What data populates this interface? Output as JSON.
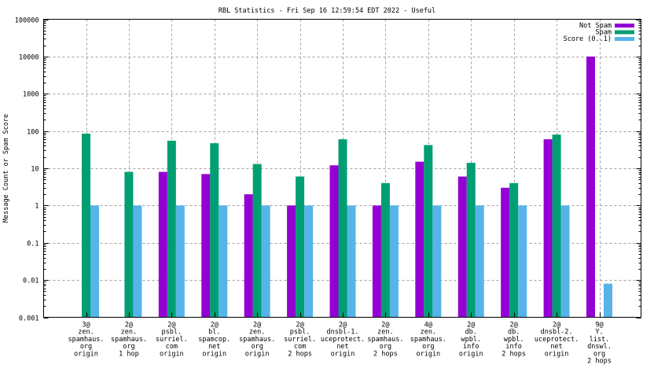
{
  "chart_data": {
    "type": "bar",
    "title": "RBL Statistics - Fri Sep 16 12:59:54 EDT 2022 - Useful",
    "xlabel": "",
    "ylabel": "Message Count or Spam Score",
    "yscale": "log",
    "ylim": [
      0.001,
      100000
    ],
    "yticks": [
      "100000",
      "10000",
      "1000",
      "100",
      "10",
      "1",
      "0.1",
      "0.01",
      "0.001"
    ],
    "ytick_values": [
      100000,
      10000,
      1000,
      100,
      10,
      1,
      0.1,
      0.01,
      0.001
    ],
    "grid": true,
    "legend_position": "top-right",
    "categories": [
      [
        "3@",
        "zen.",
        "spamhaus.",
        "org",
        "origin"
      ],
      [
        "2@",
        "zen.",
        "spamhaus.",
        "org",
        "1 hop"
      ],
      [
        "2@",
        "psbl.",
        "surriel.",
        "com",
        "origin"
      ],
      [
        "2@",
        "bl.",
        "spamcop.",
        "net",
        "origin"
      ],
      [
        "2@",
        "zen.",
        "spamhaus.",
        "org",
        "origin"
      ],
      [
        "2@",
        "psbl.",
        "surriel.",
        "com",
        "2 hops"
      ],
      [
        "2@",
        "dnsbl-1.",
        "uceprotect.",
        "net",
        "origin"
      ],
      [
        "2@",
        "zen.",
        "spamhaus.",
        "org",
        "2 hops"
      ],
      [
        "4@",
        "zen.",
        "spamhaus.",
        "org",
        "origin"
      ],
      [
        "2@",
        "db.",
        "wpbl.",
        "info",
        "origin"
      ],
      [
        "2@",
        "db.",
        "wpbl.",
        "info",
        "2 hops"
      ],
      [
        "2@",
        "dnsbl-2.",
        "uceprotect.",
        "net",
        "origin"
      ],
      [
        "9@",
        "Y.",
        "list.",
        "dnswl.",
        "org",
        "2 hops"
      ]
    ],
    "series": [
      {
        "name": "Not Spam",
        "color": "#9400d3",
        "values": [
          0,
          0,
          8,
          7,
          2,
          1,
          12,
          1,
          15,
          6,
          3,
          60,
          10000
        ]
      },
      {
        "name": "Spam",
        "color": "#009e73",
        "values": [
          85,
          8,
          55,
          47,
          13,
          6,
          60,
          4,
          42,
          14,
          4,
          80,
          0
        ]
      },
      {
        "name": "Score (0..1)",
        "color": "#56b4e9",
        "values": [
          1,
          1,
          1,
          1,
          1,
          1,
          1,
          1,
          1,
          1,
          1,
          1,
          0.008
        ]
      }
    ]
  }
}
